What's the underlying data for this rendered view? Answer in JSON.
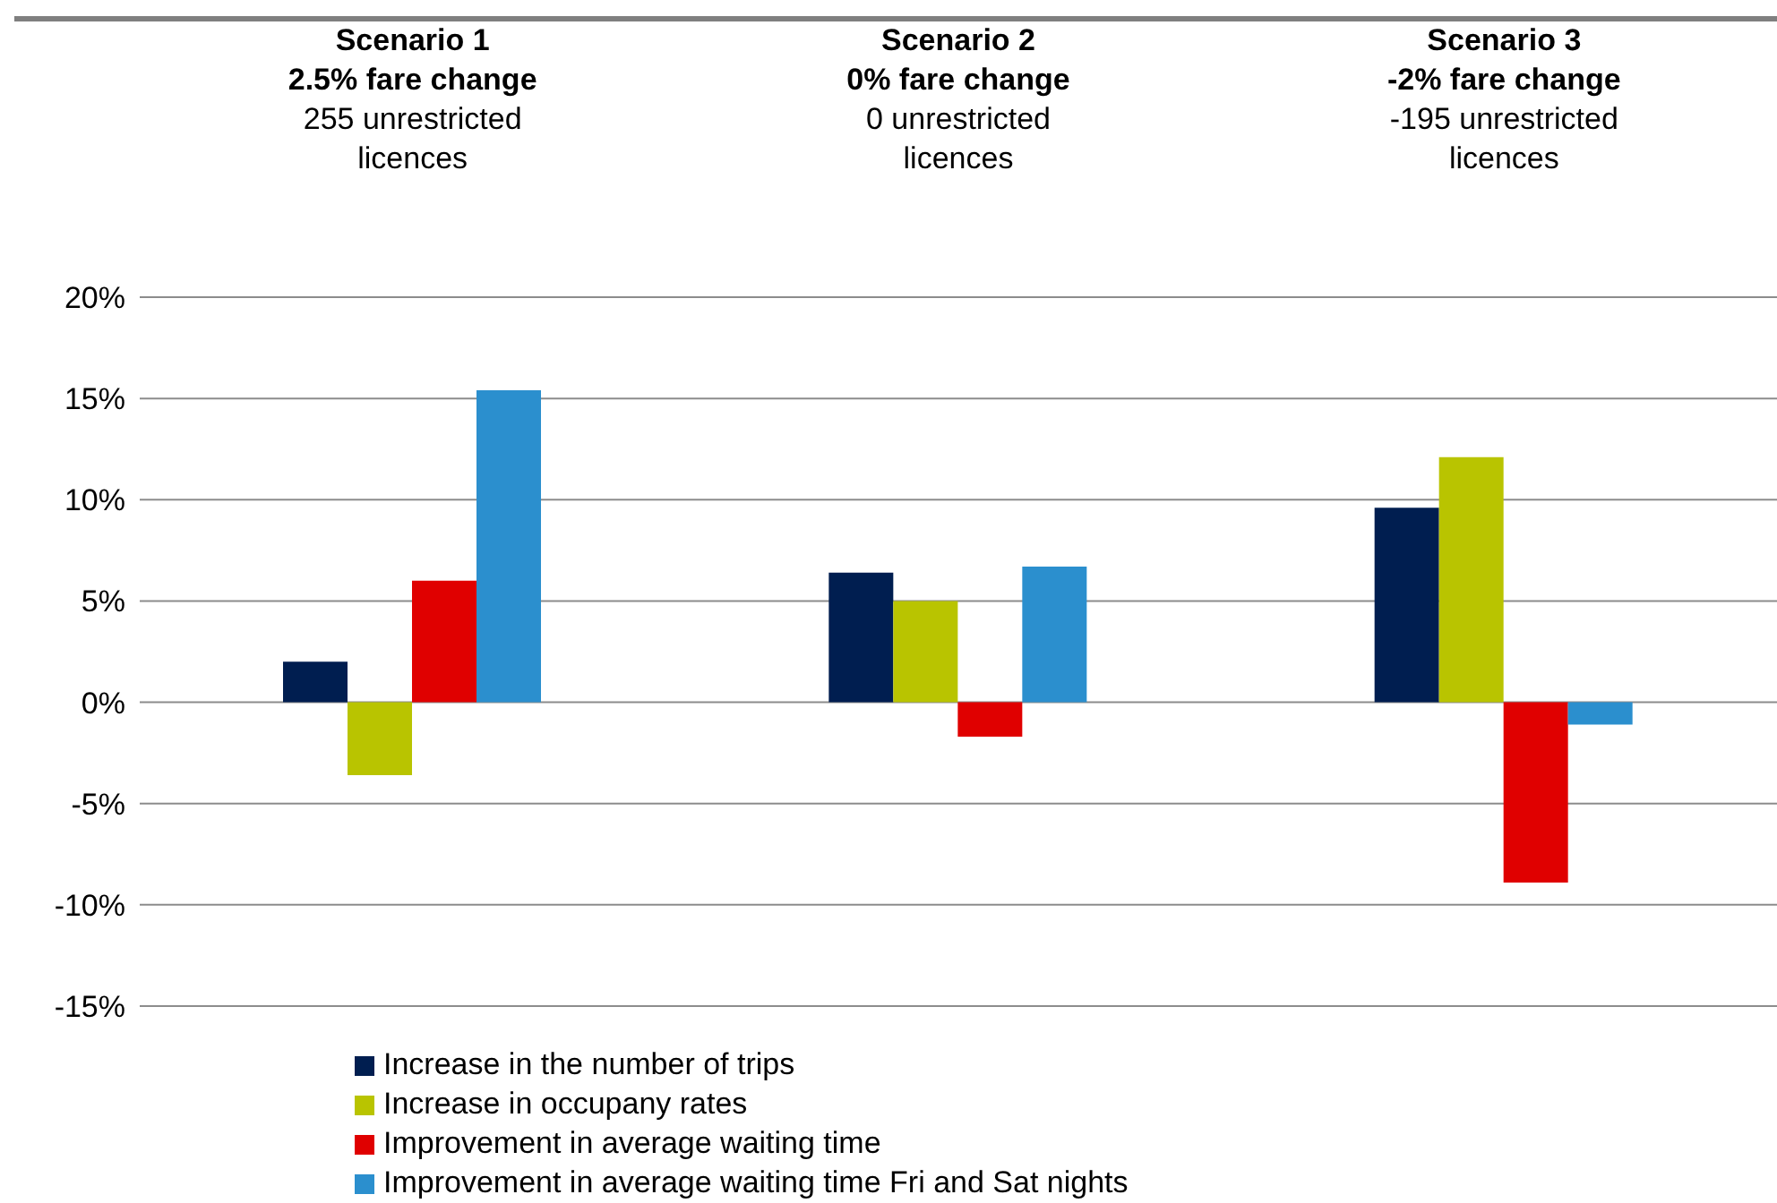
{
  "chart_data": {
    "type": "bar",
    "categories": [
      "Scenario 1\n2.5% fare change\n255 unrestricted\nlicences",
      "Scenario 2\n0% fare change\n0 unrestricted\nlicences",
      "Scenario 3\n-2% fare change\n-195 unrestricted\nlicences"
    ],
    "series": [
      {
        "name": "Increase in the number of trips",
        "color": "#001e50",
        "values": [
          2.0,
          6.4,
          9.6
        ]
      },
      {
        "name": "Increase in occupany rates",
        "color": "#b9c400",
        "values": [
          -3.6,
          5.0,
          12.1
        ]
      },
      {
        "name": "Improvement in average waiting time",
        "color": "#e00000",
        "values": [
          6.0,
          -1.7,
          -8.9
        ]
      },
      {
        "name": "Improvement in average waiting time Fri and Sat nights",
        "color": "#2b8fce",
        "values": [
          15.4,
          6.7,
          -1.1
        ]
      }
    ],
    "ylim": [
      -15,
      20
    ],
    "yticks": [
      {
        "value": -15,
        "label": "-15%"
      },
      {
        "value": -10,
        "label": "-10%"
      },
      {
        "value": -5,
        "label": "-5%"
      },
      {
        "value": 0,
        "label": "0%"
      },
      {
        "value": 5,
        "label": "5%"
      },
      {
        "value": 10,
        "label": "10%"
      },
      {
        "value": 15,
        "label": "15%"
      },
      {
        "value": 20,
        "label": "20%"
      }
    ],
    "grid": "y",
    "legend": "bottom left"
  }
}
